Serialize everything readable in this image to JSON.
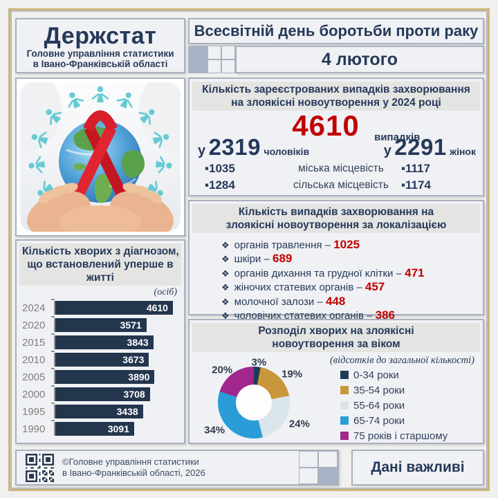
{
  "header": {
    "brand": "Держстат",
    "brand_sub_lines": [
      "Головне управління статистики",
      "в Івано-Франківській області"
    ],
    "title": "Всесвітній день боротьби проти раку",
    "date": "4 лютого"
  },
  "cases_panel": {
    "title": "Кількість зареєстрованих випадків захворювання на злоякісні новоутворення у 2024 році",
    "title_lines": [
      "Кількість зареєстрованих випадків захворювання",
      "на злоякісні новоутворення у 2024 році"
    ],
    "total": "4610",
    "total_unit": "випадків",
    "men": {
      "prefix": "у",
      "value": "2319",
      "label": "чоловіків"
    },
    "women": {
      "prefix": "у",
      "value": "2291",
      "label": "жінок"
    },
    "bullet": "▪",
    "locality_rows": [
      {
        "left": "1035",
        "label": "міська місцевість",
        "right": "1117"
      },
      {
        "left": "1284",
        "label": "сільська місцевість",
        "right": "1174"
      }
    ]
  },
  "localization_panel": {
    "title": "Кількість випадків захворювання на злоякісні новоутворення за локалізацією",
    "title_lines": [
      "Кількість випадків захворювання на",
      "злоякісні новоутворення  за локалізацією"
    ],
    "bullet": "❖",
    "separator": "–",
    "items": [
      {
        "label": "органів травлення",
        "value": "1025"
      },
      {
        "label": "шкіри",
        "value": "689"
      },
      {
        "label": "органів дихання та грудної клітки",
        "value": "471"
      },
      {
        "label": "жіночих статевих органів",
        "value": "457"
      },
      {
        "label": "молочної залози",
        "value": "448"
      },
      {
        "label": "чоловічих статевих органів",
        "value": "386"
      }
    ]
  },
  "chart_data": [
    {
      "type": "bar",
      "orientation": "horizontal",
      "title": "Кількість хворих з діагнозом, що встановлений уперше в житті",
      "title_lines": [
        "Кількість хворих з діагнозом,",
        "що встановлений уперше в",
        "житті"
      ],
      "unit_note": "(осіб)",
      "categories": [
        "2024",
        "2020",
        "2015",
        "2010",
        "2005",
        "2000",
        "1995",
        "1990"
      ],
      "values": [
        4610,
        3571,
        3843,
        3673,
        3890,
        3708,
        3438,
        3091
      ],
      "bar_color": "#24364e",
      "value_labels": "inside-end, white",
      "xlim": [
        0,
        4610
      ]
    },
    {
      "type": "pie",
      "donut": true,
      "title": "Розподіл хворих на злоякісні новоутворення за віком",
      "title_lines": [
        "Розподіл хворих на злоякісні",
        "новоутворення  за віком"
      ],
      "subtitle": "(відсотків до загальної кількості)",
      "labels": [
        "0-34  роки",
        "35-54  роки",
        "55-64  роки",
        "65-74  роки",
        "75  років і старшому"
      ],
      "values": [
        3,
        19,
        24,
        34,
        20
      ],
      "colors": [
        "#1f3b57",
        "#c9973b",
        "#dbe5ec",
        "#2a9cd8",
        "#a2278d"
      ],
      "legend_position": "right",
      "percent_suffix": "%"
    }
  ],
  "illustration": {
    "alt": "Hands holding the Earth globe with a red cancer-awareness ribbon, surrounded by a teal paper-chain of people"
  },
  "footer": {
    "copyright_lines": [
      "©Головне управління статистики",
      "в Івано-Франківській області, 2026"
    ],
    "slogan": "Дані важливі"
  },
  "colors": {
    "accent_red": "#c00000",
    "navy": "#26395a",
    "panel_bg": "#f0f1f4",
    "panel_border": "#a9b0bf",
    "band_bg": "#e4e4e2",
    "bar": "#24364e",
    "frame_gold": "#cdb67a",
    "decor_square": "#a8b3c7",
    "people_teal": "#66cbd4",
    "ribbon_red": "#d81e2a"
  }
}
